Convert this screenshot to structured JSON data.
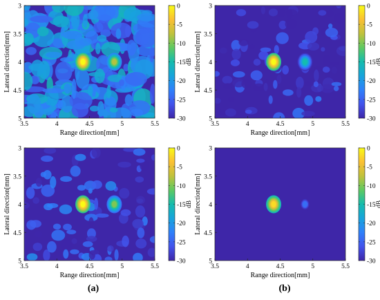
{
  "figure": {
    "captions": [
      "(a)",
      "(b)"
    ]
  },
  "colors": {
    "colormap": [
      "#3e26a8",
      "#4253ec",
      "#2f80fa",
      "#17a4dc",
      "#15bcae",
      "#5ec962",
      "#c0c23c",
      "#fbc033",
      "#f9fb15"
    ],
    "background_level_db": -30
  },
  "chart_data": [
    {
      "type": "heatmap",
      "id": "top-left",
      "xlabel": "Range direction[mm]",
      "ylabel": "Lateral direction[mm]",
      "colorbar_label": "dB",
      "xlim": [
        3.5,
        5.5
      ],
      "ylim": [
        3,
        5
      ],
      "xticks": [
        "3.5",
        "4",
        "4.5",
        "5",
        "5.5"
      ],
      "yticks": [
        "3",
        "3.5",
        "4",
        "4.5",
        "5"
      ],
      "clim": [
        -30,
        0
      ],
      "cticks": [
        "0",
        "-5",
        "-10",
        "-15",
        "-20",
        "-25",
        "-30"
      ],
      "targets": [
        {
          "x": 4.4,
          "y": 4.0,
          "peak_db": 0
        },
        {
          "x": 4.88,
          "y": 4.0,
          "peak_db": -8
        }
      ],
      "clutter_level_db": -17
    },
    {
      "type": "heatmap",
      "id": "top-right",
      "xlabel": "Range direction[mm]",
      "ylabel": "Lateral direction[mm]",
      "colorbar_label": "dB",
      "xlim": [
        3.5,
        5.5
      ],
      "ylim": [
        3,
        5
      ],
      "xticks": [
        "3.5",
        "4",
        "4.5",
        "5",
        "5.5"
      ],
      "yticks": [
        "3",
        "3.5",
        "4",
        "4.5",
        "5"
      ],
      "clim": [
        -30,
        0
      ],
      "cticks": [
        "0",
        "-5",
        "-10",
        "-15",
        "-20",
        "-25",
        "-30"
      ],
      "targets": [
        {
          "x": 4.4,
          "y": 4.0,
          "peak_db": 0
        },
        {
          "x": 4.88,
          "y": 4.0,
          "peak_db": -15
        }
      ],
      "clutter_level_db": -24
    },
    {
      "type": "heatmap",
      "id": "bottom-left",
      "xlabel": "Range direction[mm]",
      "ylabel": "Lateral direction[mm]",
      "colorbar_label": "dB",
      "xlim": [
        3.5,
        5.5
      ],
      "ylim": [
        3,
        5
      ],
      "xticks": [
        "3.5",
        "4",
        "4.5",
        "5",
        "5.5"
      ],
      "yticks": [
        "3",
        "3.5",
        "4",
        "4.5",
        "5"
      ],
      "clim": [
        -30,
        0
      ],
      "cticks": [
        "0",
        "-5",
        "-10",
        "-15",
        "-20",
        "-25",
        "-30"
      ],
      "targets": [
        {
          "x": 4.4,
          "y": 4.0,
          "peak_db": 0
        },
        {
          "x": 4.88,
          "y": 4.0,
          "peak_db": -10
        }
      ],
      "clutter_level_db": -22
    },
    {
      "type": "heatmap",
      "id": "bottom-right",
      "xlabel": "Range direction[mm]",
      "ylabel": "Lateral direction[mm]",
      "colorbar_label": "dB",
      "xlim": [
        3.5,
        5.5
      ],
      "ylim": [
        3,
        5
      ],
      "xticks": [
        "3.5",
        "4",
        "4.5",
        "5",
        "5.5"
      ],
      "yticks": [
        "3",
        "3.5",
        "4",
        "4.5",
        "5"
      ],
      "clim": [
        -30,
        0
      ],
      "cticks": [
        "0",
        "-5",
        "-10",
        "-15",
        "-20",
        "-25",
        "-30"
      ],
      "targets": [
        {
          "x": 4.4,
          "y": 4.0,
          "peak_db": -2
        },
        {
          "x": 4.88,
          "y": 4.0,
          "peak_db": -24
        }
      ],
      "clutter_level_db": -30
    }
  ]
}
